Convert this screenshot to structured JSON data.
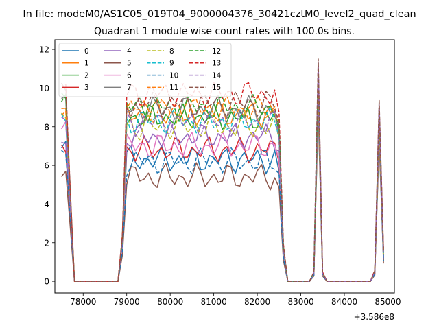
{
  "figure": {
    "suptitle": "In file: modeM0/AS1C05_019T04_9000004376_30421cztM0_level2_quad_clean",
    "offset_label": "+3.586e8"
  },
  "chart_data": {
    "type": "line",
    "title": "Quadrant 1 module wise count rates with 100.0s bins.",
    "xlabel": "",
    "ylabel": "",
    "x_offset": 358600000,
    "xlim": [
      77350,
      85150
    ],
    "ylim": [
      -0.6,
      12.5
    ],
    "x_ticks": [
      78000,
      79000,
      80000,
      81000,
      82000,
      83000,
      84000,
      85000
    ],
    "y_ticks": [
      0,
      2,
      4,
      6,
      8,
      10,
      12
    ],
    "grid": false,
    "legend": {
      "placement": "top-left",
      "ncol": 4
    },
    "x": [
      77500,
      77600,
      77700,
      77800,
      77900,
      78000,
      78100,
      78200,
      78300,
      78400,
      78500,
      78600,
      78700,
      78800,
      78900,
      79000,
      79100,
      79200,
      79300,
      79400,
      79500,
      79600,
      79700,
      79800,
      79900,
      80000,
      80100,
      80200,
      80300,
      80400,
      80500,
      80600,
      80700,
      80800,
      80900,
      81000,
      81100,
      81200,
      81300,
      81400,
      81500,
      81600,
      81700,
      81800,
      81900,
      82000,
      82100,
      82200,
      82300,
      82400,
      82500,
      82600,
      82700,
      82800,
      82900,
      83000,
      83100,
      83200,
      83300,
      83400,
      83500,
      83600,
      83700,
      83800,
      83900,
      84000,
      84100,
      84200,
      84300,
      84400,
      84500,
      84600,
      84700,
      84800,
      84900
    ],
    "series": [
      {
        "name": "0",
        "color": "#1f77b4",
        "dash": false,
        "base": 6.3,
        "start": 6.9
      },
      {
        "name": "1",
        "color": "#ff7f0e",
        "dash": false,
        "base": 8.7,
        "start": 8.6
      },
      {
        "name": "2",
        "color": "#2ca02c",
        "dash": false,
        "base": 8.5,
        "start": 9.4
      },
      {
        "name": "3",
        "color": "#d62728",
        "dash": false,
        "base": 6.8,
        "start": 7.0
      },
      {
        "name": "4",
        "color": "#9467bd",
        "dash": false,
        "base": 7.5,
        "start": 7.5
      },
      {
        "name": "5",
        "color": "#8c564b",
        "dash": false,
        "base": 5.4,
        "start": 5.8
      },
      {
        "name": "6",
        "color": "#e377c2",
        "dash": false,
        "base": 7.0,
        "start": 8.0
      },
      {
        "name": "7",
        "color": "#7f7f7f",
        "dash": false,
        "base": 8.9,
        "start": 9.2
      },
      {
        "name": "8",
        "color": "#bcbd22",
        "dash": true,
        "base": 8.0,
        "start": 8.3
      },
      {
        "name": "9",
        "color": "#17becf",
        "dash": true,
        "base": 8.3,
        "start": 8.5
      },
      {
        "name": "10",
        "color": "#1f77b4",
        "dash": true,
        "base": 6.2,
        "start": 7.0
      },
      {
        "name": "11",
        "color": "#ff7f0e",
        "dash": true,
        "base": 8.9,
        "start": 9.0
      },
      {
        "name": "12",
        "color": "#2ca02c",
        "dash": true,
        "base": 9.0,
        "start": 9.5
      },
      {
        "name": "13",
        "color": "#d62728",
        "dash": true,
        "base": 9.7,
        "start": 9.8
      },
      {
        "name": "14",
        "color": "#9467bd",
        "dash": true,
        "base": 8.2,
        "start": 8.1
      },
      {
        "name": "15",
        "color": "#8c564b",
        "dash": true,
        "base": 9.2,
        "start": 10.0
      }
    ]
  }
}
